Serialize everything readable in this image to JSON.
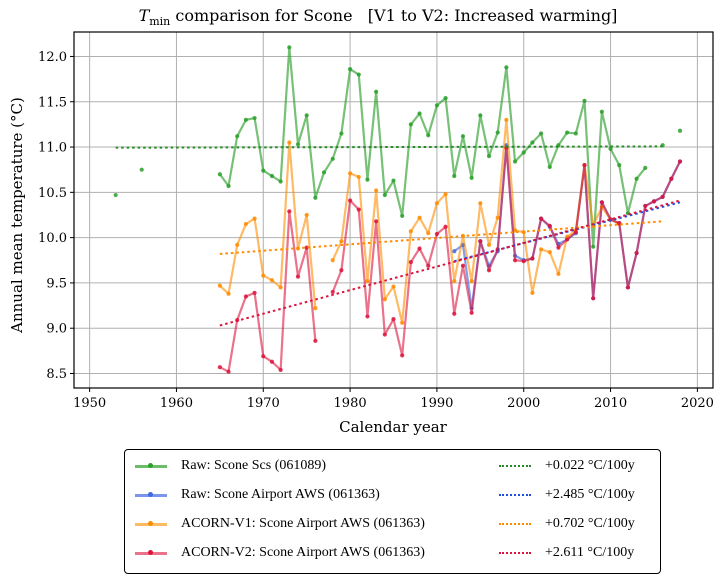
{
  "chart_data": {
    "type": "line",
    "title_prefix": "T",
    "title_subscript": "min",
    "title_rest": " comparison for Scone   [V1 to V2: Increased warming]",
    "xlabel": "Calendar year",
    "ylabel": "Annual mean temperature (°C)",
    "xlim": [
      1948.2,
      2021.8
    ],
    "ylim": [
      8.34,
      12.27
    ],
    "xticks": [
      1950,
      1960,
      1970,
      1980,
      1990,
      2000,
      2010,
      2020
    ],
    "xtick_labels": [
      "1950",
      "1960",
      "1970",
      "1980",
      "1990",
      "2000",
      "2010",
      "2020"
    ],
    "yticks": [
      8.5,
      9.0,
      9.5,
      10.0,
      10.5,
      11.0,
      11.5,
      12.0
    ],
    "ytick_labels": [
      "8.5",
      "9.0",
      "9.5",
      "10.0",
      "10.5",
      "11.0",
      "11.5",
      "12.0"
    ],
    "grid": true,
    "legend_placement": "below",
    "series": [
      {
        "name": "Raw: Scone Scs (061089)",
        "color": "#2ca02c",
        "x": [
          1953,
          1956,
          1965,
          1966,
          1967,
          1968,
          1969,
          1970,
          1971,
          1972,
          1973,
          1974,
          1975,
          1976,
          1977,
          1978,
          1979,
          1980,
          1981,
          1982,
          1983,
          1984,
          1985,
          1986,
          1987,
          1988,
          1989,
          1990,
          1991,
          1992,
          1993,
          1994,
          1995,
          1996,
          1997,
          1998,
          1999,
          2000,
          2001,
          2002,
          2003,
          2004,
          2005,
          2006,
          2007,
          2008,
          2009,
          2010,
          2011,
          2012,
          2013,
          2014,
          2016,
          2018
        ],
        "y": [
          10.47,
          10.75,
          10.7,
          10.57,
          11.12,
          11.3,
          11.32,
          10.74,
          10.68,
          10.62,
          12.1,
          11.03,
          11.35,
          10.44,
          10.72,
          10.87,
          11.15,
          11.86,
          11.8,
          10.64,
          11.61,
          10.47,
          10.63,
          10.24,
          11.25,
          11.37,
          11.13,
          11.46,
          11.54,
          10.68,
          11.12,
          10.66,
          11.35,
          10.9,
          11.16,
          11.88,
          10.84,
          10.94,
          11.05,
          11.15,
          10.78,
          11.02,
          11.16,
          11.15,
          11.51,
          9.9,
          11.39,
          10.98,
          10.8,
          10.27,
          10.65,
          10.77,
          11.02,
          11.18
        ],
        "trend": {
          "label": "+0.022 °C/100y",
          "color": "#228b22",
          "x": [
            1953,
            2016
          ],
          "y": [
            10.993,
            11.007
          ]
        }
      },
      {
        "name": "Raw: Scone Airport AWS (061363)",
        "color": "#4169e1",
        "x": [
          1992,
          1993,
          1994,
          1995,
          1996,
          1997,
          1998,
          1999,
          2000,
          2001,
          2002,
          2003,
          2004,
          2005,
          2006,
          2007,
          2008,
          2009,
          2010,
          2011,
          2012,
          2013,
          2014,
          2015,
          2016,
          2017,
          2018
        ],
        "y": [
          9.85,
          9.92,
          9.22,
          9.96,
          9.69,
          9.85,
          11.02,
          9.8,
          9.75,
          9.77,
          10.21,
          10.12,
          9.93,
          9.98,
          10.05,
          10.8,
          9.33,
          10.39,
          10.2,
          10.16,
          9.45,
          9.83,
          10.35,
          10.4,
          10.45,
          10.65,
          10.84
        ],
        "trend": {
          "label": "+2.485 °C/100y",
          "color": "#1f4fe0",
          "x": [
            1992,
            2018
          ],
          "y": [
            9.74,
            10.39
          ]
        }
      },
      {
        "name": "ACORN-V1: Scone Airport AWS (061363)",
        "color": "#ff8c00",
        "x": [
          1965,
          1966,
          1967,
          1968,
          1969,
          1970,
          1971,
          1972,
          1973,
          1974,
          1975,
          1976,
          1978,
          1979,
          1980,
          1981,
          1982,
          1983,
          1984,
          1985,
          1986,
          1987,
          1988,
          1989,
          1990,
          1991,
          1992,
          1993,
          1994,
          1995,
          1996,
          1997,
          1998,
          1999,
          2000,
          2001,
          2002,
          2003,
          2004,
          2005,
          2006,
          2007,
          2008,
          2009,
          2010,
          2011
        ],
        "y": [
          9.47,
          9.38,
          9.92,
          10.15,
          10.21,
          9.58,
          9.53,
          9.45,
          11.05,
          9.88,
          10.25,
          9.22,
          9.75,
          9.96,
          10.71,
          10.67,
          9.52,
          10.52,
          9.32,
          9.46,
          9.06,
          10.07,
          10.22,
          10.05,
          10.38,
          10.48,
          9.52,
          10.02,
          9.52,
          10.38,
          9.92,
          10.22,
          11.3,
          10.08,
          10.06,
          9.39,
          9.87,
          9.84,
          9.6,
          10.01,
          10.08,
          10.8,
          10.13,
          10.34,
          10.2,
          10.15
        ],
        "trend": {
          "label": "+0.702 °C/100y",
          "color": "#ff8c00",
          "x": [
            1965,
            2016
          ],
          "y": [
            9.82,
            10.18
          ]
        }
      },
      {
        "name": "ACORN-V2: Scone Airport AWS (061363)",
        "color": "#dc143c",
        "x": [
          1965,
          1966,
          1967,
          1968,
          1969,
          1970,
          1971,
          1972,
          1973,
          1974,
          1975,
          1976,
          1978,
          1979,
          1980,
          1981,
          1982,
          1983,
          1984,
          1985,
          1986,
          1987,
          1988,
          1989,
          1990,
          1991,
          1992,
          1993,
          1994,
          1995,
          1996,
          1997,
          1998,
          1999,
          2000,
          2001,
          2002,
          2003,
          2004,
          2005,
          2006,
          2007,
          2008,
          2009,
          2010,
          2011,
          2012,
          2013,
          2014,
          2015,
          2016,
          2017,
          2018
        ],
        "y": [
          8.57,
          8.52,
          9.09,
          9.35,
          9.39,
          8.69,
          8.63,
          8.54,
          10.29,
          9.57,
          9.89,
          8.86,
          9.4,
          9.64,
          10.41,
          10.31,
          9.13,
          10.18,
          8.93,
          9.1,
          8.7,
          9.73,
          9.88,
          9.69,
          10.04,
          10.12,
          9.16,
          9.69,
          9.17,
          9.96,
          9.64,
          9.87,
          10.99,
          9.75,
          9.74,
          9.77,
          10.21,
          10.13,
          9.89,
          9.98,
          10.06,
          10.8,
          9.33,
          10.39,
          10.2,
          10.16,
          9.45,
          9.83,
          10.35,
          10.4,
          10.45,
          10.65,
          10.84
        ],
        "trend": {
          "label": "+2.611 °C/100y",
          "color": "#dc143c",
          "x": [
            1965,
            2018
          ],
          "y": [
            9.03,
            10.41
          ]
        }
      }
    ]
  },
  "legend": {
    "items": [
      {
        "label": "Raw: Scone Scs (061089)",
        "color": "#2ca02c"
      },
      {
        "label": "Raw: Scone Airport AWS (061363)",
        "color": "#4169e1"
      },
      {
        "label": "ACORN-V1: Scone Airport AWS (061363)",
        "color": "#ff8c00"
      },
      {
        "label": "ACORN-V2: Scone Airport AWS (061363)",
        "color": "#dc143c"
      }
    ],
    "trends": [
      {
        "label": "+0.022 °C/100y",
        "color": "#228b22"
      },
      {
        "label": "+2.485 °C/100y",
        "color": "#1f4fe0"
      },
      {
        "label": "+0.702 °C/100y",
        "color": "#ff8c00"
      },
      {
        "label": "+2.611 °C/100y",
        "color": "#dc143c"
      }
    ]
  }
}
